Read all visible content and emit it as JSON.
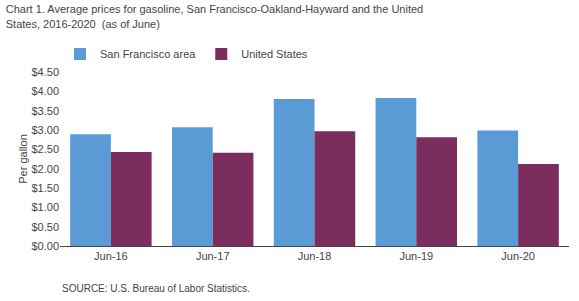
{
  "chart_data": {
    "type": "bar",
    "title": "Chart 1. Average prices for gasoline, San Francisco-Oakland-Hayward and the United\nStates, 2016-2020  (as of June)",
    "y_label": "Per gallon",
    "categories": [
      "Jun-16",
      "Jun-17",
      "Jun-18",
      "Jun-19",
      "Jun-20"
    ],
    "series": [
      {
        "name": "San Francisco area",
        "color": "#5B9BD5",
        "values": [
          2.89,
          3.07,
          3.8,
          3.83,
          2.99
        ]
      },
      {
        "name": "United States",
        "color": "#7B2D5E",
        "values": [
          2.43,
          2.41,
          2.97,
          2.81,
          2.12
        ]
      }
    ],
    "ylim": [
      0.0,
      4.5
    ],
    "yticks": [
      {
        "value": 0.0,
        "label": "$0.00"
      },
      {
        "value": 0.5,
        "label": "$0.50"
      },
      {
        "value": 1.0,
        "label": "$1.00"
      },
      {
        "value": 1.5,
        "label": "$1.50"
      },
      {
        "value": 2.0,
        "label": "$2.00"
      },
      {
        "value": 2.5,
        "label": "$2.50"
      },
      {
        "value": 3.0,
        "label": "$3.00"
      },
      {
        "value": 3.5,
        "label": "$3.50"
      },
      {
        "value": 4.0,
        "label": "$4.00"
      },
      {
        "value": 4.5,
        "label": "$4.50"
      }
    ],
    "grid": false,
    "legend": "upper left",
    "annotations": [
      "SOURCE: U.S. Bureau of Labor Statistics."
    ]
  }
}
